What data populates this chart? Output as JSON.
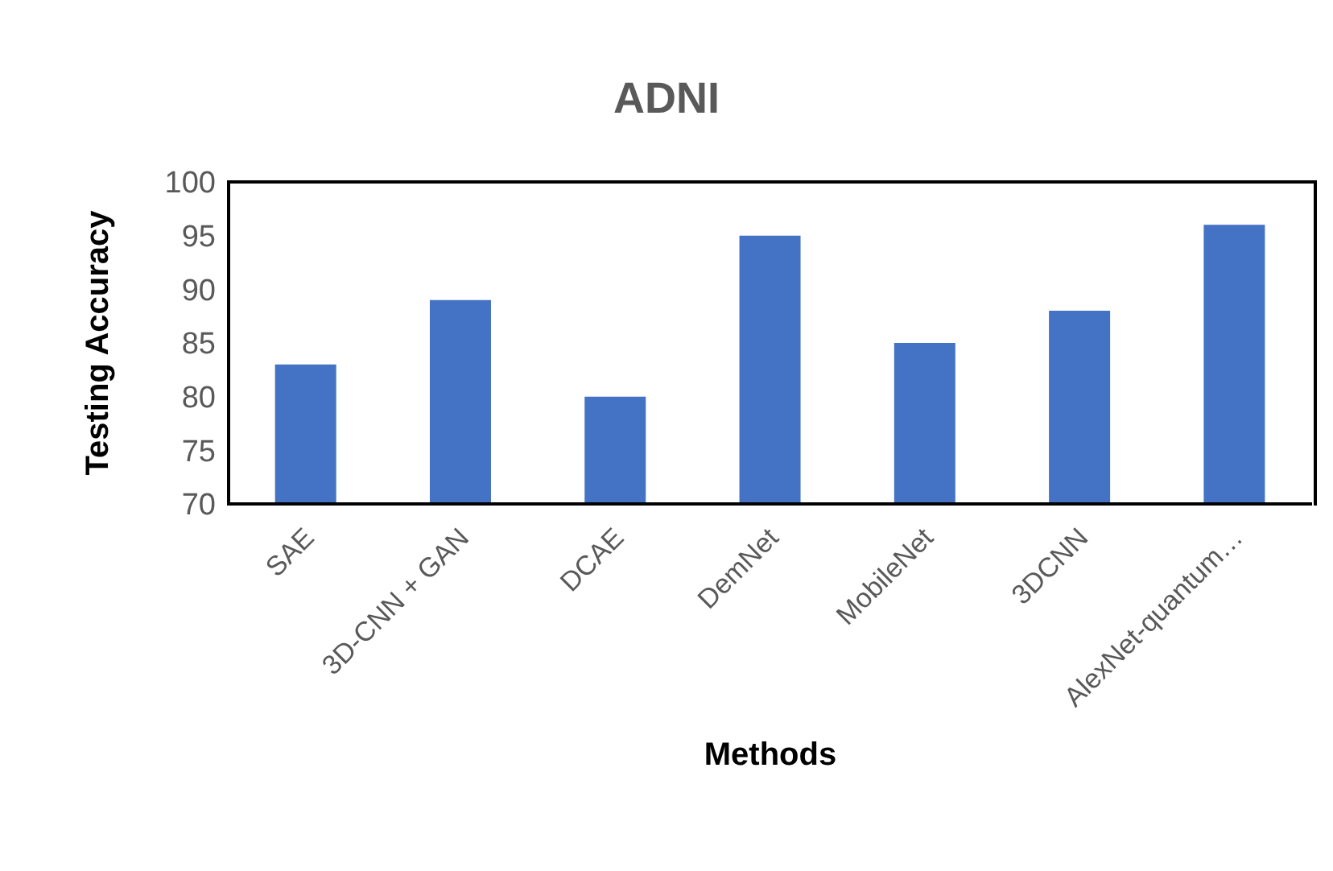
{
  "chart_data": {
    "type": "bar",
    "title": "ADNI",
    "xlabel": "Methods",
    "ylabel": "Testing Accuracy",
    "categories": [
      "SAE",
      "3D-CNN + GAN",
      "DCAE",
      "DemNet",
      "MobileNet",
      "3DCNN",
      "AlexNet-quantum…"
    ],
    "values": [
      83,
      89,
      80,
      95,
      85,
      88,
      96
    ],
    "color": "#4472c4",
    "ylim": [
      70,
      100
    ],
    "yticks": [
      70,
      75,
      80,
      85,
      90,
      95,
      100
    ],
    "grid": false,
    "legend": false
  }
}
